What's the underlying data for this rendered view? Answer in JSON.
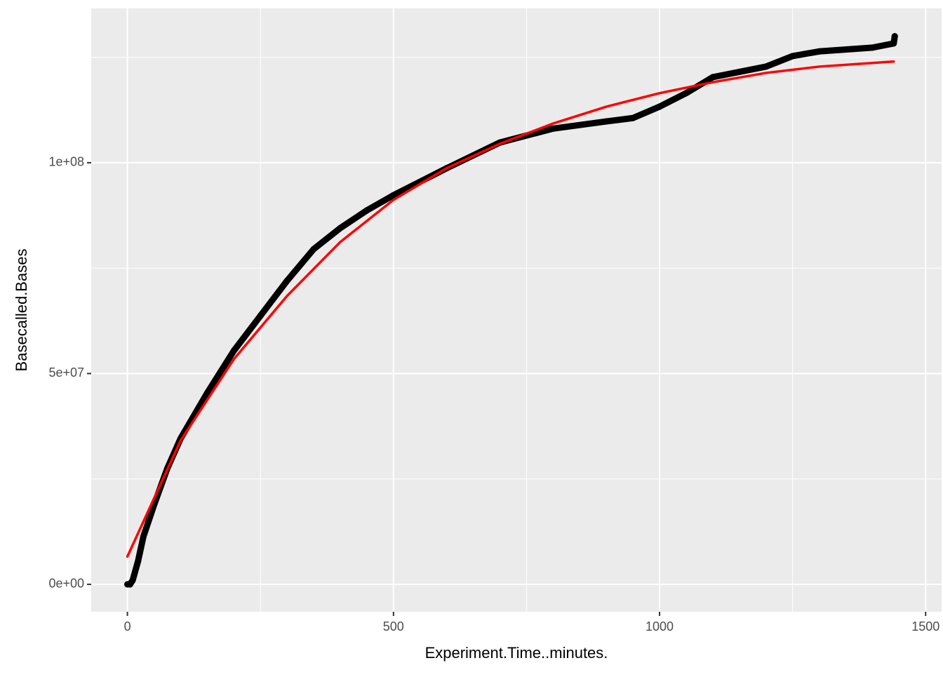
{
  "chart_data": {
    "type": "scatter",
    "x_label": "Experiment.Time..minutes.",
    "y_label": "Basecalled.Bases",
    "xlim": [
      -68,
      1530
    ],
    "ylim": [
      -6500000,
      136600000
    ],
    "xticks": [
      0,
      500,
      1000,
      1500
    ],
    "yticks": [
      {
        "value": 0,
        "label": "0e+00"
      },
      {
        "value": 50000000,
        "label": "5e+07"
      },
      {
        "value": 100000000,
        "label": "1e+08"
      }
    ],
    "x_minor_grid": [
      250,
      750,
      1250
    ],
    "y_minor_grid": [
      25000000,
      75000000,
      125000000
    ],
    "grid": true,
    "series": [
      {
        "mode": "points",
        "color": "#000000",
        "x": [
          0,
          5,
          10,
          20,
          30,
          50,
          75,
          100,
          150,
          200,
          250,
          300,
          350,
          400,
          450,
          500,
          600,
          700,
          800,
          900,
          950,
          1000,
          1050,
          1100,
          1200,
          1250,
          1300,
          1400,
          1440,
          1442
        ],
        "values": [
          0,
          0,
          1000000,
          5500000,
          11300000,
          18800000,
          27500000,
          34600000,
          45400000,
          55400000,
          63700000,
          72000000,
          79500000,
          84500000,
          88700000,
          92300000,
          98700000,
          104800000,
          108100000,
          109800000,
          110600000,
          113300000,
          116500000,
          120300000,
          122800000,
          125300000,
          126400000,
          127300000,
          128300000,
          130000000
        ]
      },
      {
        "mode": "line",
        "color": "#ff0000",
        "x": [
          0,
          100,
          200,
          300,
          400,
          500,
          600,
          700,
          800,
          900,
          1000,
          1100,
          1200,
          1300,
          1440
        ],
        "values": [
          6600000,
          34100000,
          53400000,
          68400000,
          81200000,
          91200000,
          98700000,
          104500000,
          109300000,
          113300000,
          116500000,
          119100000,
          121300000,
          122800000,
          124000000
        ]
      }
    ]
  }
}
